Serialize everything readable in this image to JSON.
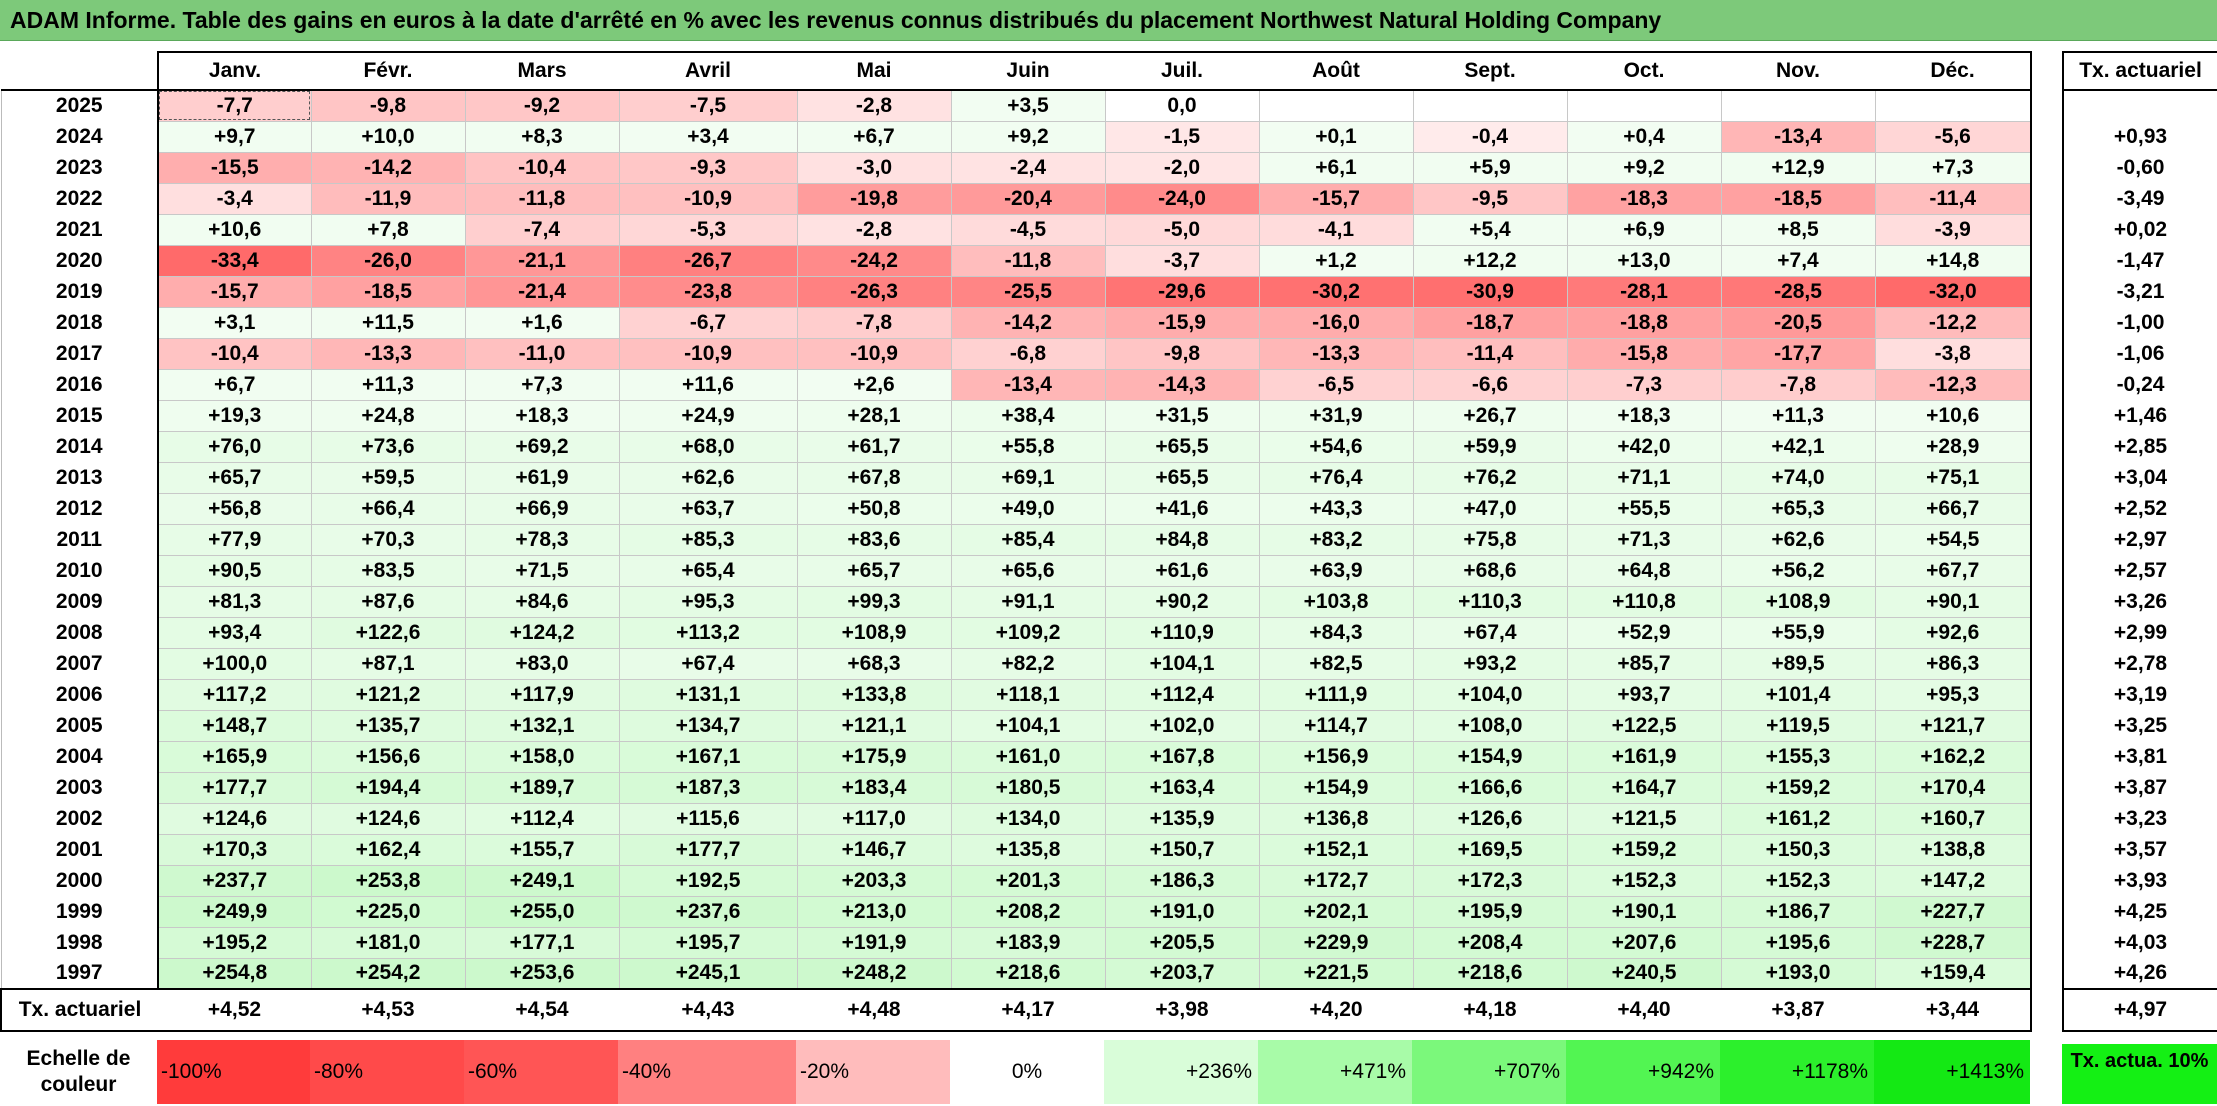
{
  "title": "ADAM Informe. Table des gains en euros à la date d'arrêté en % avec les revenus connus distribués du placement Northwest Natural Holding Company",
  "chart_data": {
    "type": "table",
    "months": [
      "Janv.",
      "Févr.",
      "Mars",
      "Avril",
      "Mai",
      "Juin",
      "Juil.",
      "Août",
      "Sept.",
      "Oct.",
      "Nov.",
      "Déc."
    ],
    "rate_header": "Tx. actuariel",
    "rows": [
      {
        "year": "2025",
        "values": [
          "-7,7",
          "-9,8",
          "-9,2",
          "-7,5",
          "-2,8",
          "+3,5",
          "0,0",
          "",
          "",
          "",
          "",
          ""
        ],
        "rate": ""
      },
      {
        "year": "2024",
        "values": [
          "+9,7",
          "+10,0",
          "+8,3",
          "+3,4",
          "+6,7",
          "+9,2",
          "-1,5",
          "+0,1",
          "-0,4",
          "+0,4",
          "-13,4",
          "-5,6"
        ],
        "rate": "+0,93"
      },
      {
        "year": "2023",
        "values": [
          "-15,5",
          "-14,2",
          "-10,4",
          "-9,3",
          "-3,0",
          "-2,4",
          "-2,0",
          "+6,1",
          "+5,9",
          "+9,2",
          "+12,9",
          "+7,3"
        ],
        "rate": "-0,60"
      },
      {
        "year": "2022",
        "values": [
          "-3,4",
          "-11,9",
          "-11,8",
          "-10,9",
          "-19,8",
          "-20,4",
          "-24,0",
          "-15,7",
          "-9,5",
          "-18,3",
          "-18,5",
          "-11,4"
        ],
        "rate": "-3,49"
      },
      {
        "year": "2021",
        "values": [
          "+10,6",
          "+7,8",
          "-7,4",
          "-5,3",
          "-2,8",
          "-4,5",
          "-5,0",
          "-4,1",
          "+5,4",
          "+6,9",
          "+8,5",
          "-3,9"
        ],
        "rate": "+0,02"
      },
      {
        "year": "2020",
        "values": [
          "-33,4",
          "-26,0",
          "-21,1",
          "-26,7",
          "-24,2",
          "-11,8",
          "-3,7",
          "+1,2",
          "+12,2",
          "+13,0",
          "+7,4",
          "+14,8"
        ],
        "rate": "-1,47"
      },
      {
        "year": "2019",
        "values": [
          "-15,7",
          "-18,5",
          "-21,4",
          "-23,8",
          "-26,3",
          "-25,5",
          "-29,6",
          "-30,2",
          "-30,9",
          "-28,1",
          "-28,5",
          "-32,0"
        ],
        "rate": "-3,21"
      },
      {
        "year": "2018",
        "values": [
          "+3,1",
          "+11,5",
          "+1,6",
          "-6,7",
          "-7,8",
          "-14,2",
          "-15,9",
          "-16,0",
          "-18,7",
          "-18,8",
          "-20,5",
          "-12,2"
        ],
        "rate": "-1,00"
      },
      {
        "year": "2017",
        "values": [
          "-10,4",
          "-13,3",
          "-11,0",
          "-10,9",
          "-10,9",
          "-6,8",
          "-9,8",
          "-13,3",
          "-11,4",
          "-15,8",
          "-17,7",
          "-3,8"
        ],
        "rate": "-1,06"
      },
      {
        "year": "2016",
        "values": [
          "+6,7",
          "+11,3",
          "+7,3",
          "+11,6",
          "+2,6",
          "-13,4",
          "-14,3",
          "-6,5",
          "-6,6",
          "-7,3",
          "-7,8",
          "-12,3"
        ],
        "rate": "-0,24"
      },
      {
        "year": "2015",
        "values": [
          "+19,3",
          "+24,8",
          "+18,3",
          "+24,9",
          "+28,1",
          "+38,4",
          "+31,5",
          "+31,9",
          "+26,7",
          "+18,3",
          "+11,3",
          "+10,6"
        ],
        "rate": "+1,46"
      },
      {
        "year": "2014",
        "values": [
          "+76,0",
          "+73,6",
          "+69,2",
          "+68,0",
          "+61,7",
          "+55,8",
          "+65,5",
          "+54,6",
          "+59,9",
          "+42,0",
          "+42,1",
          "+28,9"
        ],
        "rate": "+2,85"
      },
      {
        "year": "2013",
        "values": [
          "+65,7",
          "+59,5",
          "+61,9",
          "+62,6",
          "+67,8",
          "+69,1",
          "+65,5",
          "+76,4",
          "+76,2",
          "+71,1",
          "+74,0",
          "+75,1"
        ],
        "rate": "+3,04"
      },
      {
        "year": "2012",
        "values": [
          "+56,8",
          "+66,4",
          "+66,9",
          "+63,7",
          "+50,8",
          "+49,0",
          "+41,6",
          "+43,3",
          "+47,0",
          "+55,5",
          "+65,3",
          "+66,7"
        ],
        "rate": "+2,52"
      },
      {
        "year": "2011",
        "values": [
          "+77,9",
          "+70,3",
          "+78,3",
          "+85,3",
          "+83,6",
          "+85,4",
          "+84,8",
          "+83,2",
          "+75,8",
          "+71,3",
          "+62,6",
          "+54,5"
        ],
        "rate": "+2,97"
      },
      {
        "year": "2010",
        "values": [
          "+90,5",
          "+83,5",
          "+71,5",
          "+65,4",
          "+65,7",
          "+65,6",
          "+61,6",
          "+63,9",
          "+68,6",
          "+64,8",
          "+56,2",
          "+67,7"
        ],
        "rate": "+2,57"
      },
      {
        "year": "2009",
        "values": [
          "+81,3",
          "+87,6",
          "+84,6",
          "+95,3",
          "+99,3",
          "+91,1",
          "+90,2",
          "+103,8",
          "+110,3",
          "+110,8",
          "+108,9",
          "+90,1"
        ],
        "rate": "+3,26"
      },
      {
        "year": "2008",
        "values": [
          "+93,4",
          "+122,6",
          "+124,2",
          "+113,2",
          "+108,9",
          "+109,2",
          "+110,9",
          "+84,3",
          "+67,4",
          "+52,9",
          "+55,9",
          "+92,6"
        ],
        "rate": "+2,99"
      },
      {
        "year": "2007",
        "values": [
          "+100,0",
          "+87,1",
          "+83,0",
          "+67,4",
          "+68,3",
          "+82,2",
          "+104,1",
          "+82,5",
          "+93,2",
          "+85,7",
          "+89,5",
          "+86,3"
        ],
        "rate": "+2,78"
      },
      {
        "year": "2006",
        "values": [
          "+117,2",
          "+121,2",
          "+117,9",
          "+131,1",
          "+133,8",
          "+118,1",
          "+112,4",
          "+111,9",
          "+104,0",
          "+93,7",
          "+101,4",
          "+95,3"
        ],
        "rate": "+3,19"
      },
      {
        "year": "2005",
        "values": [
          "+148,7",
          "+135,7",
          "+132,1",
          "+134,7",
          "+121,1",
          "+104,1",
          "+102,0",
          "+114,7",
          "+108,0",
          "+122,5",
          "+119,5",
          "+121,7"
        ],
        "rate": "+3,25"
      },
      {
        "year": "2004",
        "values": [
          "+165,9",
          "+156,6",
          "+158,0",
          "+167,1",
          "+175,9",
          "+161,0",
          "+167,8",
          "+156,9",
          "+154,9",
          "+161,9",
          "+155,3",
          "+162,2"
        ],
        "rate": "+3,81"
      },
      {
        "year": "2003",
        "values": [
          "+177,7",
          "+194,4",
          "+189,7",
          "+187,3",
          "+183,4",
          "+180,5",
          "+163,4",
          "+154,9",
          "+166,6",
          "+164,7",
          "+159,2",
          "+170,4"
        ],
        "rate": "+3,87"
      },
      {
        "year": "2002",
        "values": [
          "+124,6",
          "+124,6",
          "+112,4",
          "+115,6",
          "+117,0",
          "+134,0",
          "+135,9",
          "+136,8",
          "+126,6",
          "+121,5",
          "+161,2",
          "+160,7"
        ],
        "rate": "+3,23"
      },
      {
        "year": "2001",
        "values": [
          "+170,3",
          "+162,4",
          "+155,7",
          "+177,7",
          "+146,7",
          "+135,8",
          "+150,7",
          "+152,1",
          "+169,5",
          "+159,2",
          "+150,3",
          "+138,8"
        ],
        "rate": "+3,57"
      },
      {
        "year": "2000",
        "values": [
          "+237,7",
          "+253,8",
          "+249,1",
          "+192,5",
          "+203,3",
          "+201,3",
          "+186,3",
          "+172,7",
          "+172,3",
          "+152,3",
          "+152,3",
          "+147,2"
        ],
        "rate": "+3,93"
      },
      {
        "year": "1999",
        "values": [
          "+249,9",
          "+225,0",
          "+255,0",
          "+237,6",
          "+213,0",
          "+208,2",
          "+191,0",
          "+202,1",
          "+195,9",
          "+190,1",
          "+186,7",
          "+227,7"
        ],
        "rate": "+4,25"
      },
      {
        "year": "1998",
        "values": [
          "+195,2",
          "+181,0",
          "+177,1",
          "+195,7",
          "+191,9",
          "+183,9",
          "+205,5",
          "+229,9",
          "+208,4",
          "+207,6",
          "+195,6",
          "+228,7"
        ],
        "rate": "+4,03"
      },
      {
        "year": "1997",
        "values": [
          "+254,8",
          "+254,2",
          "+253,6",
          "+245,1",
          "+248,2",
          "+218,6",
          "+203,7",
          "+221,5",
          "+218,6",
          "+240,5",
          "+193,0",
          "+159,4"
        ],
        "rate": "+4,26"
      }
    ],
    "footer": {
      "label": "Tx. actuariel",
      "values": [
        "+4,52",
        "+4,53",
        "+4,54",
        "+4,43",
        "+4,48",
        "+4,17",
        "+3,98",
        "+4,20",
        "+4,18",
        "+4,40",
        "+3,87",
        "+3,44"
      ],
      "rate": "+4,97"
    },
    "color_scale": {
      "label": "Echelle de couleur",
      "steps": [
        "-100%",
        "-80%",
        "-60%",
        "-40%",
        "-20%",
        "0%",
        "+236%",
        "+471%",
        "+707%",
        "+942%",
        "+1178%",
        "+1413%"
      ],
      "step_colors": [
        "#ff3b3b",
        "#ff4a4a",
        "#ff5555",
        "#ff8080",
        "#ffbcbc",
        "#ffffff",
        "#d9fdd9",
        "#a8fba8",
        "#7bf87b",
        "#52f552",
        "#2cf02c",
        "#14e914"
      ],
      "rate_label": "Tx. actua. 10%",
      "rate_color": "#14f014"
    },
    "colors": {
      "title_bar": "#7dc97a",
      "negative_max": "#ff6a6a",
      "positive_tint": "#ccf9cc"
    }
  }
}
